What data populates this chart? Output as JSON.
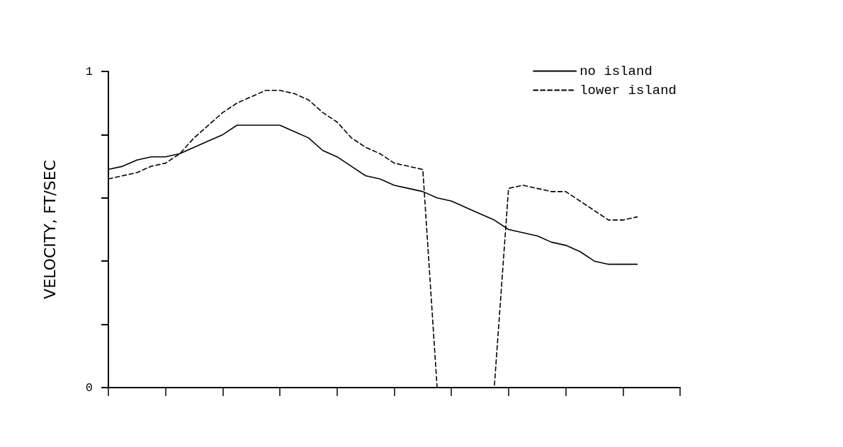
{
  "chart_data": {
    "type": "line",
    "ylabel": "VELOCITY, FT/SEC",
    "categories": [
      null,
      null,
      null,
      null,
      null,
      null,
      null,
      null,
      null,
      null,
      null,
      null,
      null,
      null,
      null,
      null,
      null,
      null,
      null,
      null,
      null,
      null,
      null,
      null,
      null,
      null,
      null,
      null,
      null,
      null,
      null,
      null,
      null,
      null,
      null,
      null,
      null,
      null,
      null,
      null,
      null
    ],
    "series": [
      {
        "name": "no island",
        "color": "#000000",
        "line_style": "solid",
        "values": [
          0.69,
          0.7,
          0.72,
          0.73,
          0.73,
          0.74,
          0.76,
          0.78,
          0.8,
          0.83,
          0.83,
          0.83,
          0.83,
          0.81,
          0.79,
          0.75,
          0.73,
          0.7,
          0.67,
          0.66,
          0.64,
          0.63,
          0.62,
          0.6,
          0.59,
          0.57,
          0.55,
          0.53,
          0.5,
          0.49,
          0.48,
          0.46,
          0.45,
          0.43,
          0.4,
          0.39,
          0.39,
          0.39,
          null,
          null,
          null
        ]
      },
      {
        "name": "lower island",
        "color": "#000000",
        "line_style": "dashed",
        "values": [
          0.66,
          0.67,
          0.68,
          0.7,
          0.71,
          0.74,
          0.79,
          0.83,
          0.87,
          0.9,
          0.92,
          0.94,
          0.94,
          0.93,
          0.91,
          0.87,
          0.84,
          0.79,
          0.76,
          0.74,
          0.71,
          0.7,
          0.69,
          0,
          0,
          0,
          0,
          0,
          0.63,
          0.64,
          0.63,
          0.62,
          0.62,
          0.59,
          0.56,
          0.53,
          0.53,
          0.54,
          null,
          null,
          null
        ]
      }
    ],
    "ylim": [
      0,
      1
    ],
    "yticks": [
      0,
      {
        "value": 0.2,
        "label": null
      },
      {
        "value": 0.4,
        "label": null
      },
      {
        "value": 0.6,
        "label": null
      },
      {
        "value": 0.8,
        "label": null
      },
      1
    ],
    "tick_labels": "y",
    "grid": false,
    "legend": "top right",
    "marker": "none"
  }
}
